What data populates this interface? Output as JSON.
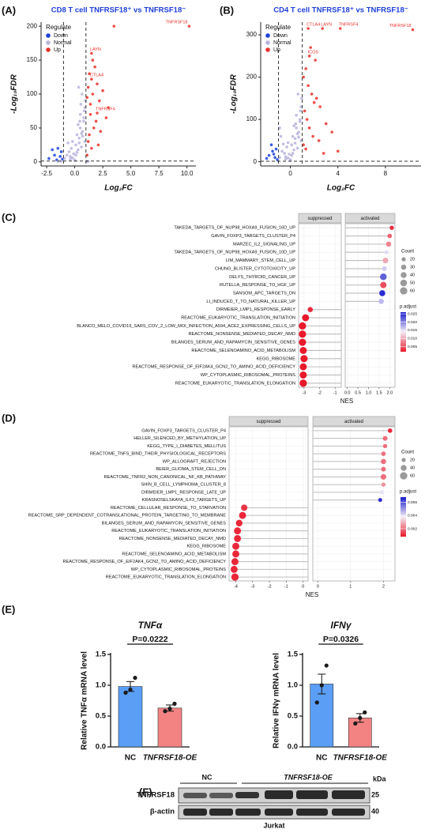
{
  "chart_data": [
    {
      "type": "scatter",
      "panel": "(A)",
      "title": "CD8 T cell TNFRSF18⁺ vs TNFRSF18⁻",
      "xlabel": "Log₂FC",
      "ylabel": "-Log₁₀FDR",
      "xlim": [
        -3,
        10.8
      ],
      "ylim": [
        -6,
        206
      ],
      "xticks": [
        {
          "value": -2.5,
          "label": "-2.5"
        },
        {
          "value": 0,
          "label": "0.0"
        },
        2.5,
        {
          "value": 5,
          "label": "5.0"
        },
        7.5,
        {
          "value": 10,
          "label": "10.0"
        }
      ],
      "yticks": [
        0,
        50,
        100,
        150,
        200
      ],
      "vlines": [
        -1,
        1
      ],
      "hline": 1.3,
      "legend_title": "Regulate",
      "legend": "top-left",
      "series": [
        {
          "name": "Down",
          "color": "#1c3fd8",
          "x": [
            -1.5,
            -2.0,
            -1.8,
            -1.3,
            -2.3,
            -1.1,
            -1.6,
            -1.2
          ],
          "values": [
            20,
            18,
            10,
            8,
            5,
            4,
            3,
            15
          ]
        },
        {
          "name": "Normal",
          "color": "#b7b3dc",
          "x": [
            -0.9,
            -0.7,
            -0.5,
            -0.4,
            -0.3,
            -0.2,
            -0.1,
            0,
            0.1,
            0.2,
            0.3,
            0.4,
            0.5,
            0.6,
            0.7,
            0.8,
            0.9,
            -0.6,
            -0.2,
            0.1,
            0.3,
            0.5,
            0.7,
            0.9,
            0.2,
            0.4,
            0.6,
            0.0,
            -0.4,
            0.8,
            0.95,
            0.85,
            0.65,
            0.45,
            1.1,
            1.2,
            -1.2,
            -1.5,
            0.35,
            0.55
          ],
          "values": [
            5,
            10,
            15,
            8,
            20,
            30,
            12,
            3,
            25,
            40,
            18,
            35,
            50,
            22,
            45,
            60,
            30,
            28,
            6,
            10,
            55,
            70,
            38,
            80,
            14,
            28,
            42,
            2,
            4,
            65,
            90,
            75,
            100,
            60,
            1,
            0.8,
            1,
            0.5,
            110,
            85
          ]
        },
        {
          "name": "Up",
          "color": "#e8312a",
          "x": [
            10.2,
            1.5,
            1.5,
            2.0,
            3.5,
            1.1,
            1.2,
            1.3,
            1.4,
            1.6,
            1.8,
            2.0,
            2.2,
            2.5,
            1.9,
            1.7,
            1.3,
            2.3,
            2.8,
            1.2,
            1.5,
            1.1,
            2.1,
            3.0,
            1.4,
            1.6
          ],
          "values": [
            200,
            160,
            122,
            72,
            200,
            95,
            110,
            130,
            85,
            100,
            140,
            115,
            90,
            105,
            60,
            50,
            40,
            45,
            65,
            30,
            20,
            10,
            25,
            80,
            70,
            150
          ],
          "point_labels": [
            "TNFRSF18",
            "LAYN",
            "CTLA4",
            "TNFRSF4",
            null,
            null,
            null,
            null,
            null,
            null,
            null,
            null,
            null,
            null,
            null,
            null,
            null,
            null,
            null,
            null,
            null,
            null,
            null,
            null,
            null,
            null
          ]
        }
      ]
    },
    {
      "type": "scatter",
      "panel": "(B)",
      "title": "CD4 T cell TNFRSF18⁺ vs TNFRSF18⁻",
      "xlabel": "Log₂FC",
      "ylabel": "-Log₁₀FDR",
      "xlim": [
        -2.5,
        11
      ],
      "ylim": [
        -10,
        330
      ],
      "xticks": [
        0,
        4,
        8
      ],
      "yticks": [
        0,
        100,
        200,
        300
      ],
      "vlines": [
        -1,
        1
      ],
      "hline": 1.3,
      "legend_title": "Regulate",
      "legend": "top-left",
      "series": [
        {
          "name": "Down",
          "color": "#1c3fd8",
          "x": [
            -1.2,
            -1.5,
            -1.8,
            -1.3,
            -2.0,
            -1.1,
            -1.6,
            -1.4
          ],
          "values": [
            30,
            25,
            15,
            10,
            8,
            5,
            40,
            18
          ]
        },
        {
          "name": "Normal",
          "color": "#b7b3dc",
          "x": [
            -0.9,
            -0.7,
            -0.5,
            -0.4,
            -0.3,
            -0.2,
            -0.1,
            0,
            0.1,
            0.2,
            0.3,
            0.4,
            0.5,
            0.6,
            0.7,
            0.8,
            0.9,
            -0.6,
            -0.2,
            0.1,
            0.3,
            0.5,
            0.7,
            0.9,
            0.2,
            0.4,
            0.6,
            0.0,
            -0.4,
            0.8,
            0.95,
            0.85,
            0.65,
            0.45,
            -0.8,
            -0.9
          ],
          "values": [
            10,
            25,
            20,
            12,
            35,
            45,
            18,
            5,
            40,
            60,
            28,
            55,
            80,
            32,
            70,
            95,
            50,
            42,
            9,
            15,
            85,
            110,
            58,
            130,
            20,
            44,
            66,
            3,
            6,
            100,
            150,
            120,
            160,
            90,
            60,
            80
          ]
        },
        {
          "name": "Up",
          "color": "#e8312a",
          "x": [
            10.3,
            1.5,
            2.7,
            4.2,
            1.6,
            1.1,
            1.3,
            1.5,
            1.8,
            2.0,
            1.2,
            1.4,
            2.2,
            2.5,
            1.6,
            1.9,
            3.0,
            3.5,
            1.1,
            1.3,
            2.4,
            1.7,
            2.1,
            2.8,
            4.0
          ],
          "values": [
            312,
            315,
            315,
            315,
            250,
            200,
            220,
            180,
            160,
            140,
            120,
            100,
            150,
            130,
            80,
            60,
            90,
            70,
            40,
            30,
            50,
            270,
            240,
            20,
            25
          ],
          "point_labels": [
            "TNFRSF18",
            "CTLA4",
            "LAYN",
            "TNFRSF4",
            "ICOS",
            null,
            null,
            null,
            null,
            null,
            null,
            null,
            null,
            null,
            null,
            null,
            null,
            null,
            null,
            null,
            null,
            null,
            null,
            null,
            null
          ]
        }
      ]
    },
    {
      "type": "dot",
      "panel": "(C)",
      "xlabel": "NES",
      "categories": [
        "TAKEDA_TARGETS_OF_NUP98_HOXA9_FUSION_16D_UP",
        "GAVIN_FOXP3_TARGETS_CLUSTER_P4",
        "MARZEC_IL2_SIGNALING_UP",
        "TAKEDA_TARGETS_OF_NUP98_HOXA9_FUSION_10D_UP",
        "LIM_MAMMARY_STEM_CELL_UP",
        "CHUNG_BLISTER_CYTOTOXICITY_UP",
        "DELYS_THYROID_CANCER_UP",
        "RUTELLA_RESPONSE_TO_HGF_UP",
        "SANSOM_APC_TARGETS_DN",
        "LI_INDUCED_T_TO_NATURAL_KILLER_UP",
        "DIRMEIER_LMP1_RESPONSE_EARLY",
        "REACTOME_EUKARYOTIC_TRANSLATION_INITIATION",
        "BLANCO_MELO_COVID19_SARS_COV_2_LOW_MOI_INFECTION_A594_ACE2_EXPRESSING_CELLS_UP",
        "REACTOME_NONSENSE_MEDIATED_DECAY_NMD",
        "BILANGES_SERUM_AND_RAPAMYCIN_SENSITIVE_GENES",
        "REACTOME_SELENOAMINO_ACID_METABOLISM",
        "KEGG_RIBOSOME",
        "REACTOME_RESPONSE_OF_EIF2AK4_GCN2_TO_AMINO_ACID_DEFICIENCY",
        "WP_CYTOPLASMIC_RIBOSOMAL_PROTEINS",
        "REACTOME_EUKARYOTIC_TRANSLATION_ELONGATION"
      ],
      "values": [
        2.1,
        2.0,
        1.95,
        1.85,
        1.8,
        1.75,
        1.7,
        1.7,
        1.65,
        1.6,
        -2.6,
        -2.9,
        -3.1,
        -3.1,
        -3.1,
        -3.05,
        -3.0,
        -3.05,
        -3.05,
        -3.05
      ],
      "count": [
        20,
        22,
        30,
        18,
        35,
        25,
        50,
        45,
        40,
        30,
        30,
        55,
        60,
        60,
        58,
        55,
        58,
        55,
        57,
        60
      ],
      "p_adjust": [
        0.003,
        0.006,
        0.008,
        0.015,
        0.01,
        0.016,
        0.022,
        0.005,
        0.025,
        0.017,
        0.003,
        0.002,
        0.002,
        0.002,
        0.002,
        0.002,
        0.002,
        0.002,
        0.002,
        0.002
      ],
      "facets": [
        {
          "label": "suppressed",
          "xlim": [
            -3.35,
            -0.6
          ],
          "xticks": [
            -3,
            -2,
            -1
          ]
        },
        {
          "label": "activated",
          "xlim": [
            -0.1,
            2.25
          ],
          "xticks": [
            {
              "value": 0,
              "label": "0.0"
            },
            0.5,
            {
              "value": 1,
              "label": "1.0"
            },
            1.5,
            {
              "value": 2,
              "label": "2.0"
            }
          ]
        }
      ],
      "size_legend": {
        "title": "Count",
        "values": [
          20,
          30,
          40,
          50,
          60
        ]
      },
      "color_legend": {
        "title": "p.adjust",
        "lim": [
          0.002,
          0.026
        ],
        "colors": [
          "#e8192c",
          "#f3eef6",
          "#1a1acc"
        ],
        "ticks": [
          0.025,
          {
            "value": 0.02,
            "label": "0.020"
          },
          0.015,
          {
            "value": 0.01,
            "label": "0.010"
          },
          0.005
        ]
      }
    },
    {
      "type": "dot",
      "panel": "(D)",
      "xlabel": "NES",
      "categories": [
        "GAVIN_FOXP3_TARGETS_CLUSTER_P4",
        "HELLER_SILENCED_BY_METHYLATION_UP",
        "KEGG_TYPE_I_DIABETES_MELLITUS",
        "REACTOME_TNFS_BIND_THEIR_PHYSIOLOGICAL_RECEPTORS",
        "WP_ALLOGRAFT_REJECTION",
        "BEIER_GLIOMA_STEM_CELL_DN",
        "REACTOME_TNFR2_NON_CANONICAL_NF_KB_PATHWAY",
        "SHIN_B_CELL_LYMPHOMA_CLUSTER_8",
        "DIRMEIER_LMP1_RESPONSE_LATE_UP",
        "KRASNOSELSKAYA_ILF3_TARGETS_UP",
        "REACTOME_CELLULAR_RESPONSE_TO_STARVATION",
        "REACTOME_SRP_DEPENDENT_COTRANSLATIONAL_PROTEIN_TARGETING_TO_MEMBRANE",
        "BILANGES_SERUM_AND_RAPAMYCIN_SENSITIVE_GENES",
        "REACTOME_EUKARYOTIC_TRANSLATION_INITIATION",
        "REACTOME_NONSENSE_MEDIATED_DECAY_NMD",
        "KEGG_RIBOSOME",
        "REACTOME_SELENOAMINO_ACID_METABOLISM",
        "REACTOME_RESPONSE_OF_EIF2AK4_GCN2_TO_AMINO_ACID_DEFICIENCY",
        "WP_CYTOPLASMIC_RIBOSOMAL_PROTEINS",
        "REACTOME_EUKARYOTIC_TRANSLATION_ELONGATION"
      ],
      "values": [
        2.2,
        2.05,
        2.05,
        2.0,
        2.0,
        2.0,
        2.0,
        2.0,
        1.95,
        1.9,
        -3.5,
        -3.6,
        -3.8,
        -3.9,
        -3.9,
        -4.0,
        -4.0,
        -4.05,
        -4.1,
        -4.05
      ],
      "count": [
        22,
        25,
        20,
        22,
        30,
        25,
        35,
        20,
        18,
        18,
        45,
        55,
        50,
        55,
        55,
        55,
        55,
        55,
        55,
        60
      ],
      "p_adjust": [
        0.001,
        0.002,
        0.002,
        0.002,
        0.002,
        0.002,
        0.002,
        0.0025,
        0.004,
        0.0065,
        0.0012,
        0.001,
        0.001,
        0.001,
        0.001,
        0.001,
        0.001,
        0.001,
        0.001,
        0.001
      ],
      "facets": [
        {
          "label": "suppressed",
          "xlim": [
            -4.4,
            0.3
          ],
          "xticks": [
            -4,
            -3,
            -2,
            -1,
            0
          ]
        },
        {
          "label": "activated",
          "xlim": [
            -0.15,
            2.35
          ],
          "xticks": [
            0,
            1,
            2
          ]
        }
      ],
      "size_legend": {
        "title": "Count",
        "values": [
          20,
          40,
          60
        ]
      },
      "color_legend": {
        "title": "p.adjust",
        "lim": [
          0.0008,
          0.0068
        ],
        "colors": [
          "#e8192c",
          "#f3eef6",
          "#1a1acc"
        ],
        "ticks": [
          0.006,
          0.004,
          0.002
        ]
      }
    },
    {
      "type": "bar",
      "panel": "(E)",
      "title": "TNFα",
      "annotation": "P=0.0222",
      "ylabel": "Relative TNFα mRNA level",
      "categories": [
        "NC",
        "TNFRSF18-OE"
      ],
      "values": [
        0.98,
        0.63
      ],
      "errors": [
        0.08,
        0.05
      ],
      "points": [
        [
          0.88,
          0.93,
          1.12
        ],
        [
          0.58,
          0.62,
          0.7
        ]
      ],
      "colors": [
        "#5a9ef5",
        "#f38383"
      ],
      "ylim": [
        0,
        1.5
      ],
      "yticks": [
        {
          "value": 0,
          "label": "0.0"
        },
        0.5,
        {
          "value": 1,
          "label": "1.0"
        },
        1.5
      ]
    },
    {
      "type": "bar",
      "title": "IFNγ",
      "annotation": "P=0.0326",
      "ylabel": "Relative IFNγ mRNA level",
      "categories": [
        "NC",
        "TNFRSF18-OE"
      ],
      "values": [
        1.02,
        0.47
      ],
      "errors": [
        0.16,
        0.07
      ],
      "points": [
        [
          0.72,
          1.0,
          1.32
        ],
        [
          0.38,
          0.47,
          0.56
        ]
      ],
      "colors": [
        "#5a9ef5",
        "#f38383"
      ],
      "ylim": [
        0,
        1.5
      ],
      "yticks": [
        {
          "value": 0,
          "label": "0.0"
        },
        0.5,
        {
          "value": 1,
          "label": "1.0"
        },
        1.5
      ]
    }
  ],
  "blot": {
    "panel": "(F)",
    "groups": [
      "NC",
      "TNFRSF18-OE"
    ],
    "unit": "kDa",
    "rows": [
      {
        "label": "TNFRSF18",
        "marker": "25"
      },
      {
        "label": "β-actin",
        "marker": "40"
      }
    ],
    "cell_line": "Jurkat"
  }
}
